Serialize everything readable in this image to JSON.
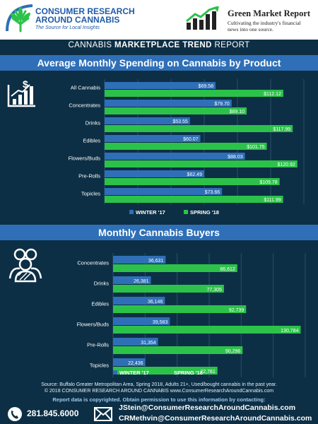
{
  "header": {
    "brand_left_line1": "CONSUMER RESEARCH",
    "brand_left_line2": "AROUND CANNABIS",
    "brand_left_tagline": "The Source for Local Insights",
    "brand_right_name": "Green Market Report",
    "brand_right_tagline": "Cultivating the industry's financial news into one source."
  },
  "report_title": {
    "prefix": "CANNABIS",
    "bold": "MARKETPLACE TREND",
    "suffix": "REPORT"
  },
  "colors": {
    "background": "#0d2f45",
    "banner": "#2f6fb7",
    "winter": "#2f6fb7",
    "spring": "#2cc24a"
  },
  "chart_data": [
    {
      "type": "bar",
      "orientation": "horizontal",
      "title": "Average Monthly Spending on Cannabis by Product",
      "icon": "growth-chart-dollar-icon",
      "categories": [
        "All Cannabis",
        "Concentrates",
        "Drinks",
        "Edibles",
        "Flowers/Buds",
        "Pre-Rolls",
        "Topicles"
      ],
      "series": [
        {
          "name": "WINTER '17",
          "values": [
            69.58,
            79.7,
            53.55,
            60.07,
            88.03,
            62.49,
            73.66
          ],
          "labels": [
            "$69.58",
            "$79.70",
            "$53.55",
            "$60.07",
            "$88.03",
            "$62.49",
            "$73.66"
          ]
        },
        {
          "name": "SPRING '18",
          "values": [
            112.12,
            89.1,
            117.99,
            101.75,
            120.92,
            109.78,
            111.99
          ],
          "labels": [
            "$112.12",
            "$89.10",
            "$117.99",
            "$101.75",
            "$120.92",
            "$109.78",
            "$111.99"
          ]
        }
      ],
      "xlim": [
        0,
        125
      ],
      "legend": "bottom"
    },
    {
      "type": "bar",
      "orientation": "horizontal",
      "title": "Monthly Cannabis Buyers",
      "icon": "people-group-icon",
      "categories": [
        "Concentrates",
        "Drinks",
        "Edibles",
        "Flowers/Buds",
        "Pre-Rolls",
        "Topicles"
      ],
      "series": [
        {
          "name": "WINTER '17",
          "values": [
            36631,
            26381,
            36146,
            39583,
            31354,
            22436
          ],
          "labels": [
            "36,631",
            "26,381",
            "36,146",
            "39,583",
            "31,354",
            "22,436"
          ]
        },
        {
          "name": "SPRING '18",
          "values": [
            86612,
            77305,
            92739,
            130784,
            90296,
            72781
          ],
          "labels": [
            "86,612",
            "77,305",
            "92,739",
            "130,784",
            "90,296",
            "72,781"
          ]
        }
      ],
      "xlim": [
        0,
        134000
      ],
      "legend": "bottom"
    }
  ],
  "footer": {
    "source_line1": "Source: Buffalo Greater Metropolitan Area, Spring 2018, Adults 21+, Used/bought cannabis in the past year.",
    "source_line2": "© 2018 CONSUMER RESEARCH AROUND CANNABIS  www.ConsumerResearchAroundCannabis.com",
    "copyright_note": "Report data is copyrighted.  Obtain permission to use this information by contacting:",
    "phone": "281.845.6000",
    "email1": "JStein@ConsumerResearchAroundCannabis.com",
    "email2": "CRMethvin@ConsumerResearchAroundCannabis.com"
  }
}
